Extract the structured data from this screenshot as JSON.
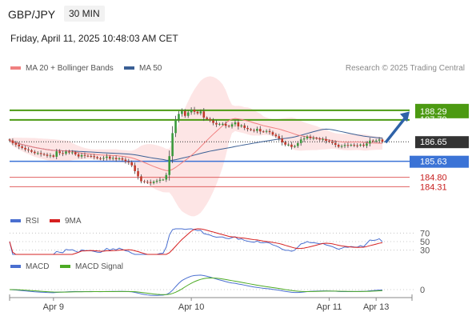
{
  "header": {
    "symbol": "GBP/JPY",
    "timeframe": "30 MIN",
    "datetime": "Friday, April 11, 2025 10:48:03 AM CET"
  },
  "credit": "Research © 2025 Trading Central",
  "colors": {
    "up": "#3c9a3c",
    "down": "#c0392b",
    "ma20": "#f08080",
    "ma50": "#3a5f94",
    "band": "#fde0e0",
    "resistance": "#4c9a12",
    "support": "#3b73d6",
    "pivot_lines": "#e06060",
    "current": "#333333",
    "arrow": "#2e62a8",
    "rsi": "#4a6fd0",
    "rsi_ma": "#d62020",
    "macd": "#4a6fd0",
    "macd_signal": "#4caa24"
  },
  "chart_data": [
    {
      "type": "candlestick",
      "legend": [
        {
          "label": "MA 20 + Bollinger Bands",
          "color": "#f08080"
        },
        {
          "label": "MA 50",
          "color": "#3a5f94"
        }
      ],
      "ylim": [
        183.2,
        190.2
      ],
      "x_ticks": [
        {
          "label": "Apr 9",
          "index": 14
        },
        {
          "label": "Apr 10",
          "index": 58
        },
        {
          "label": "Apr 11",
          "index": 102
        },
        {
          "label": "Apr 13",
          "index": 117
        }
      ],
      "candle_count": 120,
      "closes": [
        186.72,
        186.58,
        186.5,
        186.41,
        186.33,
        186.25,
        186.21,
        186.13,
        186.06,
        186.06,
        186.01,
        185.98,
        185.92,
        185.94,
        185.87,
        186.15,
        186.06,
        186.03,
        186.14,
        186.09,
        186.1,
        185.99,
        185.88,
        185.96,
        185.92,
        185.91,
        185.9,
        185.85,
        185.79,
        185.77,
        185.81,
        185.88,
        185.77,
        185.81,
        185.74,
        185.79,
        185.72,
        185.63,
        185.58,
        185.42,
        185.12,
        184.85,
        184.59,
        184.56,
        184.55,
        184.5,
        184.57,
        184.62,
        184.67,
        184.68,
        184.92,
        185.9,
        187.1,
        187.8,
        188.1,
        188.25,
        188.0,
        188.18,
        188.32,
        188.21,
        188.13,
        188.23,
        187.91,
        187.84,
        187.76,
        187.63,
        187.55,
        187.58,
        187.58,
        187.48,
        187.44,
        187.56,
        187.66,
        187.45,
        187.5,
        187.37,
        187.31,
        187.26,
        187.22,
        187.32,
        187.19,
        187.18,
        187.21,
        187.15,
        187.02,
        186.94,
        186.82,
        186.62,
        186.5,
        186.5,
        186.38,
        186.43,
        186.58,
        186.77,
        186.82,
        186.92,
        186.84,
        186.85,
        186.81,
        186.77,
        186.79,
        186.7,
        186.65,
        186.59,
        186.49,
        186.39,
        186.43,
        186.48,
        186.46,
        186.49,
        186.46,
        186.45,
        186.5,
        186.44,
        186.56,
        186.71,
        186.69,
        186.71,
        186.77,
        186.65
      ],
      "levels": [
        {
          "value": 188.29,
          "label": "188.29",
          "kind": "resistance"
        },
        {
          "value": 187.79,
          "label": "187.79",
          "kind": "resistance"
        },
        {
          "value": 186.65,
          "label": "186.65",
          "kind": "current"
        },
        {
          "value": 185.63,
          "label": "185.63",
          "kind": "support"
        },
        {
          "value": 184.8,
          "label": "184.80",
          "kind": "pivot"
        },
        {
          "value": 184.31,
          "label": "184.31",
          "kind": "pivot"
        }
      ]
    },
    {
      "type": "line",
      "legend": [
        {
          "label": "RSI",
          "color": "#4a6fd0"
        },
        {
          "label": "9MA",
          "color": "#d62020"
        }
      ],
      "ylim": [
        20,
        80
      ],
      "y_ticks": [
        {
          "value": 70,
          "label": "70"
        },
        {
          "value": 50,
          "label": "50"
        },
        {
          "value": 30,
          "label": "30"
        }
      ]
    },
    {
      "type": "line",
      "legend": [
        {
          "label": "MACD",
          "color": "#4a6fd0"
        },
        {
          "label": "MACD Signal",
          "color": "#4caa24"
        }
      ],
      "y_ticks": [
        {
          "value": 0,
          "label": "0"
        }
      ]
    }
  ]
}
